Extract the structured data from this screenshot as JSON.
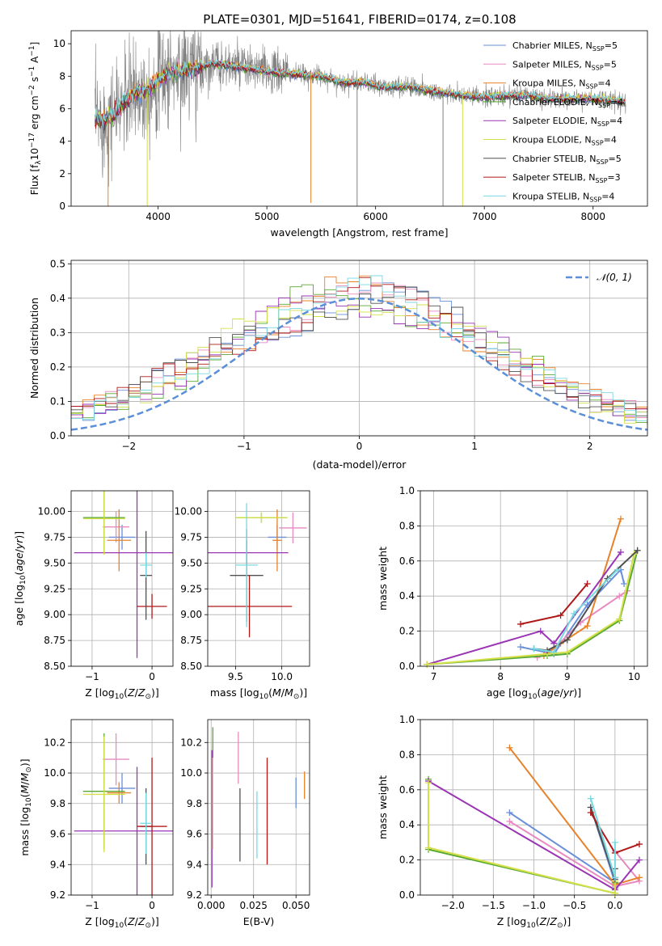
{
  "title": "PLATE=0301, MJD=51641, FIBERID=0174, z=0.108",
  "colors": {
    "chabrier_miles": "#6a8fd8",
    "salpeter_miles": "#e88ac0",
    "kroupa_miles": "#e8822a",
    "chabrier_elodie": "#5aa832",
    "salpeter_elodie": "#9a35b4",
    "kroupa_elodie": "#d4e048",
    "chabrier_stelib": "#505050",
    "salpeter_stelib": "#b01818",
    "kroupa_stelib": "#7ad8e0",
    "data": "#808080",
    "normal": "#5b8fd8"
  },
  "chart_data": [
    {
      "id": "spectrum",
      "type": "line",
      "xlabel": "wavelength [Angstrom, rest frame]",
      "ylabel_text": "Flux [f",
      "ylabel_sub": "λ",
      "ylabel_mid": "10",
      "ylabel_sup1": "−17",
      "ylabel_mid2": " erg cm",
      "ylabel_sup2": "−2",
      "ylabel_mid3": " s",
      "ylabel_sup3": "−1",
      "ylabel_mid4": " A",
      "ylabel_sup4": "−1",
      "ylabel_end": "]",
      "xlim": [
        3200,
        8500
      ],
      "ylim": [
        0,
        10.8
      ],
      "xticks": [
        4000,
        5000,
        6000,
        7000,
        8000
      ],
      "yticks": [
        0,
        2,
        4,
        6,
        8,
        10
      ],
      "grid": false,
      "legend_position": "top-right",
      "legend": [
        {
          "key": "chabrier_miles",
          "label": "Chabrier MILES, N",
          "sub": "SSP",
          "tail": "=5"
        },
        {
          "key": "salpeter_miles",
          "label": "Salpeter MILES, N",
          "sub": "SSP",
          "tail": "=5"
        },
        {
          "key": "kroupa_miles",
          "label": "Kroupa MILES, N",
          "sub": "SSP",
          "tail": "=4"
        },
        {
          "key": "chabrier_elodie",
          "label": "Chabrier ELODIE, N",
          "sub": "SSP",
          "tail": "=4"
        },
        {
          "key": "salpeter_elodie",
          "label": "Salpeter ELODIE, N",
          "sub": "SSP",
          "tail": "=4"
        },
        {
          "key": "kroupa_elodie",
          "label": "Kroupa ELODIE, N",
          "sub": "SSP",
          "tail": "=4"
        },
        {
          "key": "chabrier_stelib",
          "label": "Chabrier STELIB, N",
          "sub": "SSP",
          "tail": "=5"
        },
        {
          "key": "salpeter_stelib",
          "label": "Salpeter STELIB, N",
          "sub": "SSP",
          "tail": "=3"
        },
        {
          "key": "kroupa_stelib",
          "label": "Kroupa STELIB, N",
          "sub": "SSP",
          "tail": "=4"
        }
      ],
      "continuum": {
        "x": [
          3420,
          3500,
          3600,
          3700,
          3800,
          3900,
          4000,
          4100,
          4200,
          4300,
          4400,
          4500,
          4700,
          4900,
          5100,
          5300,
          5500,
          5700,
          5900,
          6100,
          6300,
          6500,
          6600,
          6800,
          7000,
          7200,
          7400,
          7600,
          7800,
          8000,
          8200,
          8300
        ],
        "y": [
          5.5,
          5.2,
          5.7,
          6.5,
          7.0,
          7.1,
          7.8,
          8.2,
          8.3,
          8.4,
          8.6,
          8.8,
          8.6,
          8.4,
          8.2,
          8.1,
          8.0,
          7.6,
          7.6,
          7.3,
          7.4,
          7.1,
          7.0,
          6.8,
          6.7,
          6.8,
          6.8,
          6.6,
          6.6,
          6.6,
          6.5,
          6.4
        ]
      },
      "spikes": [
        {
          "x": 3540,
          "y": 0,
          "key": "kroupa_miles"
        },
        {
          "x": 3900,
          "y": 0,
          "key": "kroupa_elodie"
        },
        {
          "x": 5405,
          "y": 0.2,
          "key": "kroupa_miles"
        },
        {
          "x": 5830,
          "y": 0,
          "key": "data"
        },
        {
          "x": 6620,
          "y": 0,
          "key": "data"
        },
        {
          "x": 6800,
          "y": 0,
          "key": "kroupa_elodie"
        }
      ]
    },
    {
      "id": "residuals",
      "type": "area",
      "xlabel": "(data-model)/error",
      "ylabel": "Normed distribution",
      "xlim": [
        -2.5,
        2.5
      ],
      "ylim": [
        0,
        0.51
      ],
      "xticks": [
        -2,
        -1,
        0,
        1,
        2
      ],
      "yticks": [
        0.0,
        0.1,
        0.2,
        0.3,
        0.4,
        0.5
      ],
      "grid": true,
      "legend_position": "top-right",
      "legend_label": "𝒩(0, 1)",
      "bin_width": 0.1
    },
    {
      "id": "age_vs_Z",
      "type": "scatter",
      "xlabel": "Z [log",
      "xlabel_sub": "10",
      "xlabel_tail": "(Z/Z",
      "xlabel_sun": "⊙",
      "xlabel_end": ")]",
      "ylabel": "age  [log",
      "ylabel_sub": "10",
      "ylabel_tail": "(age/yr)]",
      "xlim": [
        -1.35,
        0.35
      ],
      "ylim": [
        8.5,
        10.2
      ],
      "xticks": [
        -1,
        0
      ],
      "yticks": [
        8.5,
        8.75,
        9.0,
        9.25,
        9.5,
        9.75,
        10.0
      ],
      "grid": true,
      "errorbars": [
        {
          "key": "chabrier_miles",
          "x": -0.5,
          "xerr": 0.22,
          "y": 9.75,
          "yerr": 0.12
        },
        {
          "key": "salpeter_miles",
          "x": -0.6,
          "xerr": 0.22,
          "y": 9.85,
          "yerr": 0.15
        },
        {
          "key": "kroupa_miles",
          "x": -0.55,
          "xerr": 0.2,
          "y": 9.72,
          "yerr": 0.3
        },
        {
          "key": "chabrier_elodie",
          "x": -0.8,
          "xerr": 0.35,
          "y": 9.94,
          "yerr": 0.35
        },
        {
          "key": "salpeter_elodie",
          "x": -0.25,
          "xerr": 1.05,
          "y": 9.6,
          "yerr": 1.02
        },
        {
          "key": "kroupa_elodie",
          "x": -0.8,
          "xerr": 0.35,
          "y": 9.93,
          "yerr": 0.35
        },
        {
          "key": "chabrier_stelib",
          "x": -0.1,
          "xerr": 0.1,
          "y": 9.38,
          "yerr": 0.43
        },
        {
          "key": "salpeter_stelib",
          "x": 0.0,
          "xerr": 0.25,
          "y": 9.08,
          "yerr": 0.12
        },
        {
          "key": "kroupa_stelib",
          "x": -0.1,
          "xerr": 0.1,
          "y": 9.48,
          "yerr": 0.12
        }
      ]
    },
    {
      "id": "age_vs_mass",
      "type": "scatter",
      "xlabel": "mass [log",
      "xlabel_sub": "10",
      "xlabel_tail": "(M/M",
      "xlabel_sun": "⊙",
      "xlabel_end": ")]",
      "xlim": [
        9.2,
        10.3
      ],
      "ylim": [
        8.5,
        10.2
      ],
      "xticks": [
        9.5,
        10.0
      ],
      "yticks": [
        8.5,
        8.75,
        9.0,
        9.25,
        9.5,
        9.75,
        10.0
      ],
      "grid": true,
      "errorbars": [
        {
          "key": "chabrier_miles",
          "x": 9.95,
          "xerr": 0.1,
          "y": 9.75,
          "yerr": 0.12
        },
        {
          "key": "salpeter_miles",
          "x": 10.12,
          "xerr": 0.15,
          "y": 9.84,
          "yerr": 0.15
        },
        {
          "key": "kroupa_miles",
          "x": 9.95,
          "xerr": 0.05,
          "y": 9.72,
          "yerr": 0.3
        },
        {
          "key": "chabrier_elodie",
          "x": 9.78,
          "xerr": 0.28,
          "y": 9.94,
          "yerr": 0.05
        },
        {
          "key": "salpeter_elodie",
          "x": 9.62,
          "xerr": 0.45,
          "y": 9.6,
          "yerr": 0.12
        },
        {
          "key": "kroupa_elodie",
          "x": 9.78,
          "xerr": 0.28,
          "y": 9.94,
          "yerr": 0.05
        },
        {
          "key": "chabrier_stelib",
          "x": 9.62,
          "xerr": 0.18,
          "y": 9.38,
          "yerr": 0.45
        },
        {
          "key": "salpeter_stelib",
          "x": 9.65,
          "xerr": 0.46,
          "y": 9.08,
          "yerr": 0.3
        },
        {
          "key": "kroupa_stelib",
          "x": 9.62,
          "xerr": 0.12,
          "y": 9.48,
          "yerr": 0.6
        }
      ]
    },
    {
      "id": "weight_vs_age",
      "type": "line",
      "xlabel": "age  [log",
      "xlabel_sub": "10",
      "xlabel_tail": "(age/yr)]",
      "ylabel": "mass weight",
      "xlim": [
        6.8,
        10.2
      ],
      "ylim": [
        0,
        1.0
      ],
      "xticks": [
        7,
        8,
        9,
        10
      ],
      "yticks": [
        0.0,
        0.2,
        0.4,
        0.6,
        0.8,
        1.0
      ],
      "grid": true,
      "series": [
        {
          "key": "chabrier_miles",
          "x": [
            8.3,
            8.8,
            9.3,
            9.8,
            9.85
          ],
          "y": [
            0.11,
            0.07,
            0.35,
            0.55,
            0.47
          ]
        },
        {
          "key": "salpeter_miles",
          "x": [
            8.55,
            8.8,
            9.2,
            9.78,
            9.9
          ],
          "y": [
            0.05,
            0.1,
            0.25,
            0.4,
            0.43
          ]
        },
        {
          "key": "kroupa_miles",
          "x": [
            8.65,
            8.9,
            9.3,
            9.8
          ],
          "y": [
            0.06,
            0.13,
            0.23,
            0.84
          ]
        },
        {
          "key": "chabrier_elodie",
          "x": [
            6.9,
            8.7,
            9.0,
            9.78,
            10.05
          ],
          "y": [
            0.01,
            0.06,
            0.07,
            0.26,
            0.66
          ]
        },
        {
          "key": "salpeter_elodie",
          "x": [
            6.9,
            8.6,
            8.8,
            9.8
          ],
          "y": [
            0.01,
            0.2,
            0.13,
            0.65
          ]
        },
        {
          "key": "kroupa_elodie",
          "x": [
            6.9,
            8.7,
            9.0,
            9.78,
            10.0
          ],
          "y": [
            0.01,
            0.07,
            0.08,
            0.27,
            0.64
          ]
        },
        {
          "key": "chabrier_stelib",
          "x": [
            8.5,
            8.7,
            9.0,
            9.6,
            10.05
          ],
          "y": [
            0.1,
            0.09,
            0.15,
            0.5,
            0.66
          ]
        },
        {
          "key": "salpeter_stelib",
          "x": [
            8.3,
            8.9,
            9.3
          ],
          "y": [
            0.24,
            0.29,
            0.47
          ]
        },
        {
          "key": "kroupa_stelib",
          "x": [
            8.5,
            8.8,
            9.1,
            9.75
          ],
          "y": [
            0.1,
            0.08,
            0.3,
            0.55
          ]
        }
      ]
    },
    {
      "id": "mass_vs_Z",
      "type": "scatter",
      "xlabel": "Z [log",
      "xlabel_sub": "10",
      "xlabel_tail": "(Z/Z",
      "xlabel_sun": "⊙",
      "xlabel_end": ")]",
      "ylabel": "mass [log",
      "ylabel_sub": "10",
      "ylabel_tail": "(M/M",
      "ylabel_sun": "⊙",
      "ylabel_end": ")]",
      "xlim": [
        -1.35,
        0.35
      ],
      "ylim": [
        9.2,
        10.35
      ],
      "xticks": [
        -1,
        0
      ],
      "yticks": [
        9.2,
        9.4,
        9.6,
        9.8,
        10.0,
        10.2
      ],
      "grid": true,
      "errorbars": [
        {
          "key": "chabrier_miles",
          "x": -0.5,
          "xerr": 0.22,
          "y": 9.9,
          "yerr": 0.1
        },
        {
          "key": "salpeter_miles",
          "x": -0.6,
          "xerr": 0.22,
          "y": 10.09,
          "yerr": 0.17
        },
        {
          "key": "kroupa_miles",
          "x": -0.55,
          "xerr": 0.2,
          "y": 9.87,
          "yerr": 0.07
        },
        {
          "key": "chabrier_elodie",
          "x": -0.8,
          "xerr": 0.35,
          "y": 9.88,
          "yerr": 0.38
        },
        {
          "key": "salpeter_elodie",
          "x": -0.25,
          "xerr": 1.05,
          "y": 9.62,
          "yerr": 0.42
        },
        {
          "key": "kroupa_elodie",
          "x": -0.8,
          "xerr": 0.35,
          "y": 9.86,
          "yerr": 0.38
        },
        {
          "key": "chabrier_stelib",
          "x": -0.1,
          "xerr": 0.1,
          "y": 9.65,
          "yerr": 0.25
        },
        {
          "key": "salpeter_stelib",
          "x": 0.0,
          "xerr": 0.25,
          "y": 9.65,
          "yerr": 0.45
        },
        {
          "key": "kroupa_stelib",
          "x": -0.1,
          "xerr": 0.1,
          "y": 9.67,
          "yerr": 0.2
        }
      ]
    },
    {
      "id": "mass_vs_ebv",
      "type": "scatter",
      "xlabel": "E(B-V)",
      "xlim": [
        -0.002,
        0.058
      ],
      "ylim": [
        9.2,
        10.35
      ],
      "xticks": [
        0.0,
        0.025,
        0.05
      ],
      "xticklabels": [
        "0.000",
        "0.025",
        "0.050"
      ],
      "yticks": [
        9.2,
        9.4,
        9.6,
        9.8,
        10.0,
        10.2
      ],
      "grid": true,
      "errorbars": [
        {
          "key": "chabrier_miles",
          "x": 0.05,
          "y": 9.87,
          "yerr": 0.1
        },
        {
          "key": "salpeter_miles",
          "x": 0.016,
          "y": 10.1,
          "yerr": 0.17
        },
        {
          "key": "kroupa_miles",
          "x": 0.055,
          "y": 9.92,
          "yerr": 0.09
        },
        {
          "key": "chabrier_elodie",
          "x": 0.001,
          "y": 9.9,
          "yerr": 0.4
        },
        {
          "key": "salpeter_elodie",
          "x": 0.0005,
          "y": 9.7,
          "yerr": 0.45
        },
        {
          "key": "kroupa_elodie",
          "x": 0.001,
          "y": 9.8,
          "yerr": 0.3
        },
        {
          "key": "chabrier_stelib",
          "x": 0.017,
          "y": 9.66,
          "yerr": 0.24
        },
        {
          "key": "salpeter_stelib",
          "x": 0.033,
          "y": 9.75,
          "yerr": 0.35
        },
        {
          "key": "kroupa_stelib",
          "x": 0.027,
          "y": 9.66,
          "yerr": 0.22
        }
      ]
    },
    {
      "id": "weight_vs_Z",
      "type": "line",
      "xlabel": "Z [log",
      "xlabel_sub": "10",
      "xlabel_tail": "(Z/Z",
      "xlabel_sun": "⊙",
      "xlabel_end": ")]",
      "ylabel": "mass weight",
      "xlim": [
        -2.4,
        0.4
      ],
      "ylim": [
        0,
        1.0
      ],
      "xticks": [
        -2.0,
        -1.5,
        -1.0,
        -0.5,
        0.0
      ],
      "xticklabels": [
        "−2.0",
        "−1.5",
        "−1.0",
        "−0.5",
        "0.0"
      ],
      "yticks": [
        0.0,
        0.2,
        0.4,
        0.6,
        0.8,
        1.0
      ],
      "grid": true,
      "series": [
        {
          "key": "chabrier_miles",
          "x": [
            -1.3,
            0.0,
            -0.3,
            0.0,
            0.0
          ],
          "y": [
            0.47,
            0.07,
            0.5,
            0.1,
            0.04
          ]
        },
        {
          "key": "salpeter_miles",
          "x": [
            -1.3,
            0.0,
            0.3,
            0.0
          ],
          "y": [
            0.42,
            0.05,
            0.08,
            0.25
          ]
        },
        {
          "key": "kroupa_miles",
          "x": [
            -1.3,
            0.0,
            0.3
          ],
          "y": [
            0.84,
            0.06,
            0.1
          ]
        },
        {
          "key": "chabrier_elodie",
          "x": [
            -2.3,
            -2.3,
            0.0,
            0.0
          ],
          "y": [
            0.66,
            0.26,
            0.01,
            0.07
          ]
        },
        {
          "key": "salpeter_elodie",
          "x": [
            -2.3,
            0.0,
            0.3
          ],
          "y": [
            0.65,
            0.03,
            0.2
          ]
        },
        {
          "key": "kroupa_elodie",
          "x": [
            -2.3,
            -2.3,
            0.0,
            0.0
          ],
          "y": [
            0.64,
            0.27,
            0.01,
            0.08
          ]
        },
        {
          "key": "chabrier_stelib",
          "x": [
            -0.3,
            0.0,
            0.0
          ],
          "y": [
            0.5,
            0.09,
            0.15
          ]
        },
        {
          "key": "salpeter_stelib",
          "x": [
            -0.3,
            0.0,
            0.3
          ],
          "y": [
            0.47,
            0.24,
            0.29
          ]
        },
        {
          "key": "kroupa_stelib",
          "x": [
            -0.3,
            0.0,
            0.0
          ],
          "y": [
            0.55,
            0.1,
            0.3
          ]
        }
      ]
    }
  ]
}
